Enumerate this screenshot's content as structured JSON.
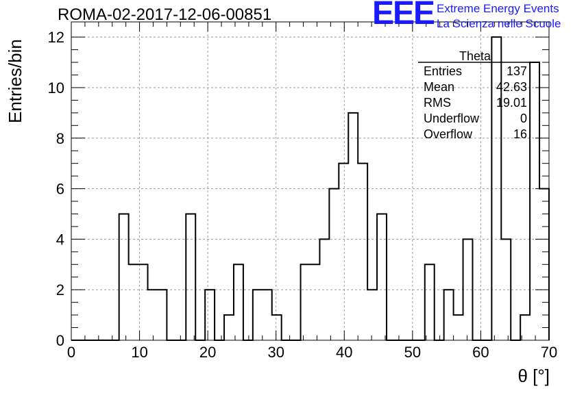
{
  "header": {
    "run_title": "ROMA-02-2017-12-06-00851",
    "logo_text": "EEE",
    "logo_line1": "Extreme Energy Events",
    "logo_line2": "La Scienza nelle Scuole",
    "logo_color": "#1a1aff"
  },
  "stats_box": {
    "title": "Theta",
    "rows": [
      {
        "label": "Entries",
        "value": "137"
      },
      {
        "label": "Mean",
        "value": "42.63"
      },
      {
        "label": "RMS",
        "value": "19.01"
      },
      {
        "label": "Underflow",
        "value": "0"
      },
      {
        "label": "Overflow",
        "value": "16"
      }
    ]
  },
  "chart_data": {
    "type": "bar",
    "histogram": true,
    "xlabel": "θ [°]",
    "ylabel": "Entries/bin",
    "xlim": [
      0,
      70
    ],
    "ylim": [
      0,
      12.6
    ],
    "bin_width": 1.4,
    "xticks": [
      0,
      10,
      20,
      30,
      40,
      50,
      60,
      70
    ],
    "yticks": [
      0,
      2,
      4,
      6,
      8,
      10,
      12
    ],
    "grid": true,
    "bin_low_edges": [
      0,
      1.4,
      2.8,
      4.2,
      5.6,
      7,
      8.4,
      9.8,
      11.2,
      12.6,
      14,
      15.4,
      16.8,
      18.2,
      19.6,
      21,
      22.4,
      23.8,
      25.2,
      26.6,
      28,
      29.4,
      30.8,
      32.2,
      33.6,
      35,
      36.4,
      37.8,
      39.2,
      40.6,
      42,
      43.4,
      44.8,
      46.2,
      47.6,
      49,
      50.4,
      51.8,
      53.2,
      54.6,
      56,
      57.4,
      58.8,
      60.2,
      61.6,
      63,
      64.4,
      65.8,
      67.2,
      68.6
    ],
    "values": [
      0,
      0,
      0,
      0,
      0,
      5,
      3,
      3,
      2,
      2,
      0,
      0,
      5,
      0,
      2,
      0,
      1,
      3,
      0,
      2,
      2,
      1,
      0,
      0,
      3,
      3,
      4,
      6,
      7,
      9,
      7,
      2,
      5,
      0,
      0,
      0,
      0,
      3,
      0,
      2,
      1,
      4,
      0,
      0,
      12,
      4,
      0,
      1,
      11,
      6
    ]
  }
}
